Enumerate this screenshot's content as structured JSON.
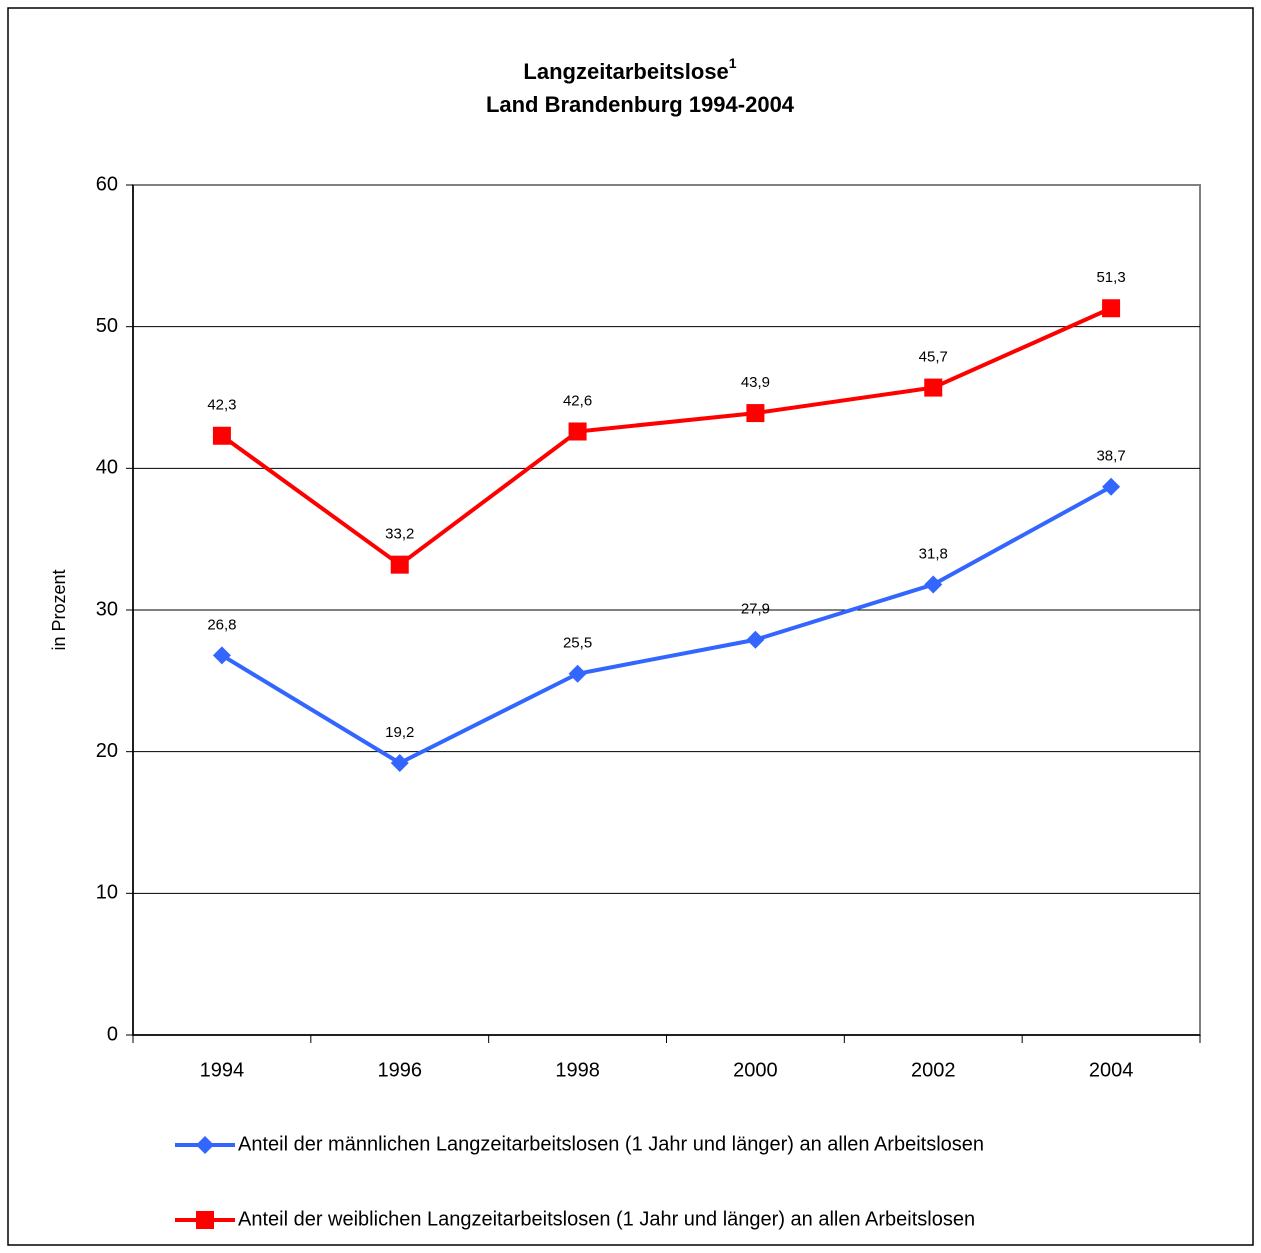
{
  "chart_data": {
    "type": "line",
    "title": "Langzeitarbeitslose",
    "title_superscript": "1",
    "subtitle": "Land Brandenburg 1994-2004",
    "y_label": "in Prozent",
    "categories": [
      "1994",
      "1996",
      "1998",
      "2000",
      "2002",
      "2004"
    ],
    "series": [
      {
        "name": "Anteil der männlichen Langzeitarbeitslosen (1 Jahr und länger) an allen Arbeitslosen",
        "color": "#3366ff",
        "marker": "diamond",
        "values": [
          26.8,
          19.2,
          25.5,
          27.9,
          31.8,
          38.7
        ],
        "value_labels": [
          "26,8",
          "19,2",
          "25,5",
          "27,9",
          "31,8",
          "38,7"
        ]
      },
      {
        "name": "Anteil der weiblichen Langzeitarbeitslosen (1 Jahr und länger) an allen Arbeitslosen",
        "color": "#ff0000",
        "marker": "square",
        "values": [
          42.3,
          33.2,
          42.6,
          43.9,
          45.7,
          51.3
        ],
        "value_labels": [
          "42,3",
          "33,2",
          "42,6",
          "43,9",
          "45,7",
          "51,3"
        ]
      }
    ],
    "ylim": [
      0,
      60
    ],
    "yticks": [
      0,
      10,
      20,
      30,
      40,
      50,
      60
    ],
    "grid": true,
    "legend": "bottom"
  }
}
